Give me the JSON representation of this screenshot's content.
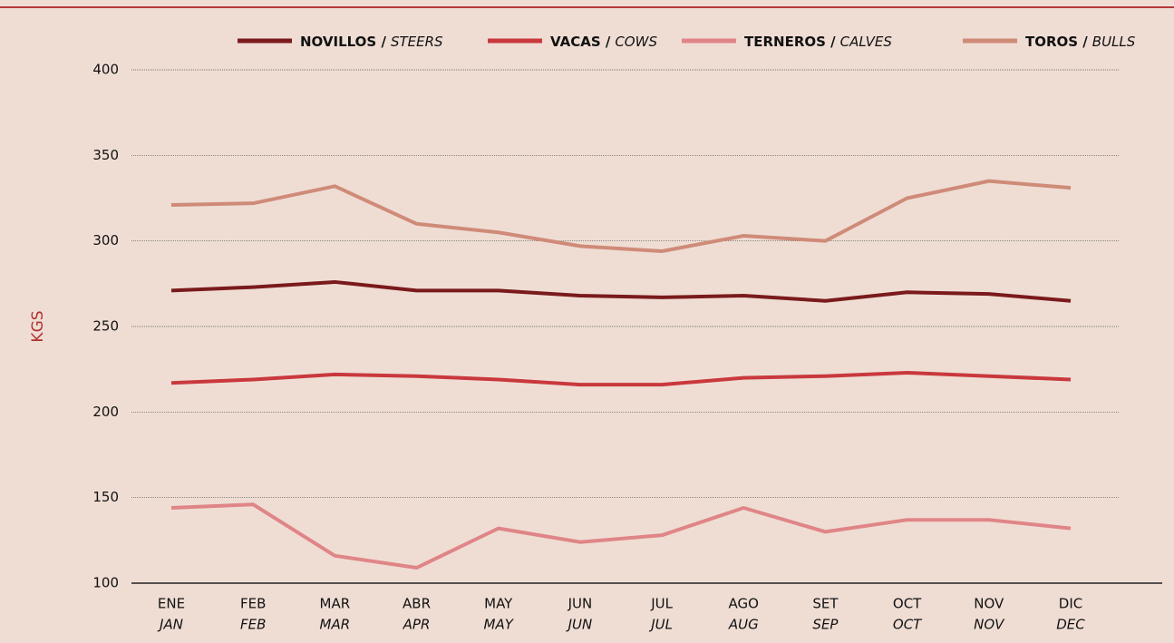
{
  "chart_data": {
    "type": "line",
    "ylabel": "KGS",
    "categories": [
      "ENE",
      "FEB",
      "MAR",
      "ABR",
      "MAY",
      "JUN",
      "JUL",
      "AGO",
      "SET",
      "OCT",
      "NOV",
      "DIC"
    ],
    "categories_en": [
      "JAN",
      "FEB",
      "MAR",
      "APR",
      "MAY",
      "JUN",
      "JUL",
      "AUG",
      "SEP",
      "OCT",
      "NOV",
      "DEC"
    ],
    "series": [
      {
        "name": "NOVILLOS /",
        "name_en": "STEERS",
        "color": "#7a1a1c",
        "values": [
          271,
          273,
          276,
          271,
          271,
          268,
          267,
          268,
          265,
          270,
          269,
          265
        ]
      },
      {
        "name": "VACAS /",
        "name_en": "COWS",
        "color": "#c9383d",
        "values": [
          217,
          219,
          222,
          221,
          219,
          216,
          216,
          220,
          221,
          223,
          221,
          219
        ]
      },
      {
        "name": "TERNEROS /",
        "name_en": "CALVES",
        "color": "#e08587",
        "values": [
          144,
          146,
          116,
          109,
          132,
          124,
          128,
          144,
          130,
          137,
          137,
          132
        ]
      },
      {
        "name": "TOROS /",
        "name_en": "BULLS",
        "color": "#cf8b78",
        "values": [
          321,
          322,
          332,
          310,
          305,
          297,
          294,
          303,
          300,
          325,
          335,
          331
        ]
      }
    ],
    "ylim": [
      100,
      400
    ],
    "yticks": [
      100,
      150,
      200,
      250,
      300,
      350,
      400
    ],
    "grid": true
  }
}
